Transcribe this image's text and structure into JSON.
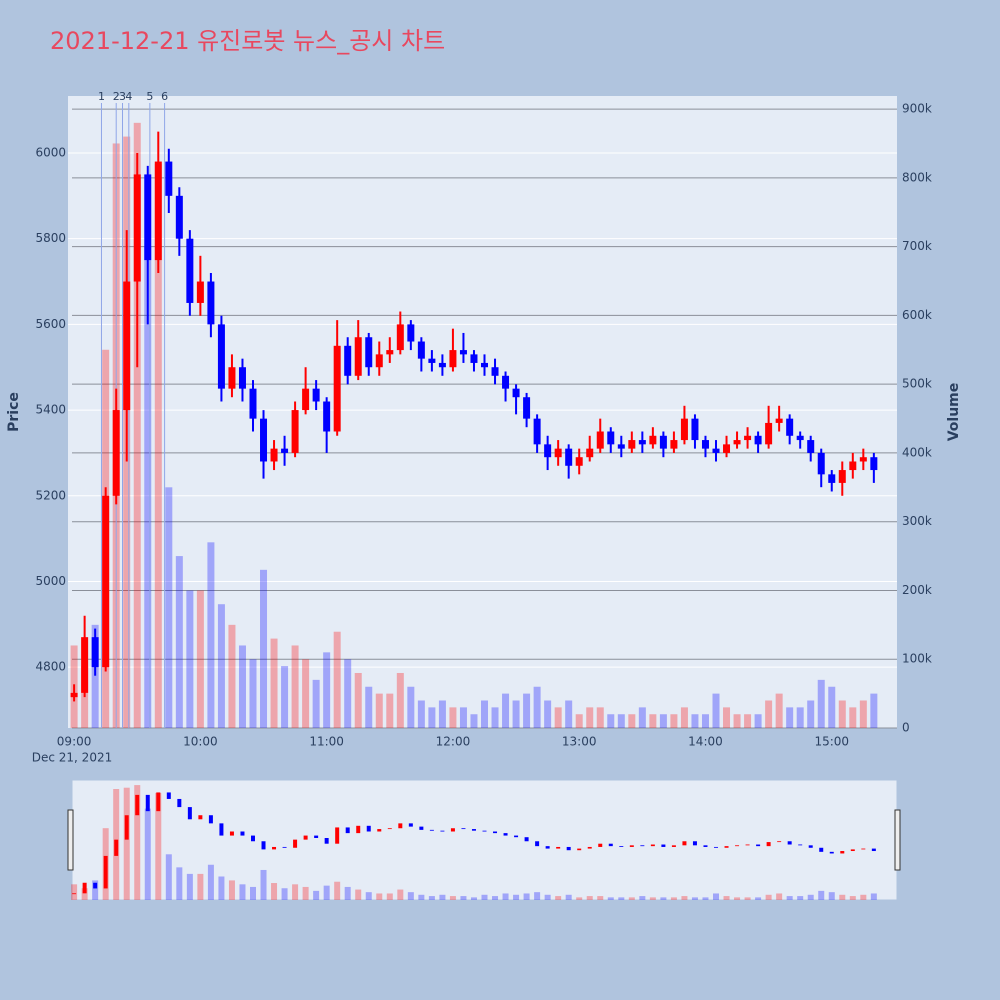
{
  "chart_data": {
    "type": "candlestick",
    "title": "2021-12-21 유진로봇 뉴스_공시 차트",
    "y_label": "Price",
    "y2_label": "Volume",
    "x_date_label": "Dec 21, 2021",
    "up_color": "#ff0000",
    "down_color": "#0000ff",
    "x": [
      "09:00",
      "09:05",
      "09:10",
      "09:15",
      "09:20",
      "09:25",
      "09:30",
      "09:35",
      "09:40",
      "09:45",
      "09:50",
      "09:55",
      "10:00",
      "10:05",
      "10:10",
      "10:15",
      "10:20",
      "10:25",
      "10:30",
      "10:35",
      "10:40",
      "10:45",
      "10:50",
      "10:55",
      "11:00",
      "11:05",
      "11:10",
      "11:15",
      "11:20",
      "11:25",
      "11:30",
      "11:35",
      "11:40",
      "11:45",
      "11:50",
      "11:55",
      "12:00",
      "12:05",
      "12:10",
      "12:15",
      "12:20",
      "12:25",
      "12:30",
      "12:35",
      "12:40",
      "12:45",
      "12:50",
      "12:55",
      "13:00",
      "13:05",
      "13:10",
      "13:15",
      "13:20",
      "13:25",
      "13:30",
      "13:35",
      "13:40",
      "13:45",
      "13:50",
      "13:55",
      "14:00",
      "14:05",
      "14:10",
      "14:15",
      "14:20",
      "14:25",
      "14:30",
      "14:35",
      "14:40",
      "14:45",
      "14:50",
      "14:55",
      "15:00",
      "15:05",
      "15:10",
      "15:15",
      "15:20"
    ],
    "open": [
      4730,
      4740,
      4870,
      4800,
      5200,
      5400,
      5700,
      5950,
      5750,
      5980,
      5900,
      5800,
      5650,
      5700,
      5600,
      5450,
      5500,
      5450,
      5380,
      5280,
      5310,
      5300,
      5400,
      5450,
      5420,
      5350,
      5550,
      5480,
      5570,
      5500,
      5530,
      5540,
      5600,
      5560,
      5520,
      5510,
      5500,
      5540,
      5530,
      5510,
      5500,
      5480,
      5450,
      5430,
      5380,
      5320,
      5290,
      5310,
      5270,
      5290,
      5310,
      5350,
      5320,
      5310,
      5330,
      5320,
      5340,
      5310,
      5330,
      5380,
      5330,
      5310,
      5300,
      5320,
      5330,
      5340,
      5320,
      5370,
      5380,
      5340,
      5330,
      5300,
      5250,
      5230,
      5260,
      5280,
      5290
    ],
    "high": [
      4760,
      4920,
      4890,
      5220,
      5450,
      5820,
      6000,
      5970,
      6050,
      6010,
      5920,
      5820,
      5760,
      5720,
      5620,
      5530,
      5520,
      5470,
      5400,
      5330,
      5340,
      5420,
      5500,
      5470,
      5430,
      5610,
      5570,
      5610,
      5580,
      5560,
      5570,
      5630,
      5610,
      5570,
      5540,
      5530,
      5590,
      5580,
      5540,
      5530,
      5520,
      5490,
      5460,
      5440,
      5390,
      5340,
      5330,
      5320,
      5310,
      5340,
      5380,
      5360,
      5340,
      5350,
      5350,
      5360,
      5350,
      5350,
      5410,
      5390,
      5340,
      5330,
      5340,
      5350,
      5360,
      5350,
      5410,
      5410,
      5390,
      5350,
      5340,
      5310,
      5260,
      5280,
      5300,
      5310,
      5300
    ],
    "low": [
      4720,
      4730,
      4780,
      4790,
      5180,
      5280,
      5500,
      5600,
      5720,
      5860,
      5760,
      5620,
      5620,
      5570,
      5420,
      5430,
      5420,
      5350,
      5240,
      5260,
      5270,
      5290,
      5390,
      5400,
      5300,
      5340,
      5460,
      5470,
      5480,
      5480,
      5510,
      5530,
      5540,
      5490,
      5490,
      5480,
      5490,
      5510,
      5490,
      5480,
      5460,
      5420,
      5390,
      5360,
      5300,
      5260,
      5270,
      5240,
      5250,
      5280,
      5300,
      5300,
      5290,
      5300,
      5300,
      5310,
      5290,
      5300,
      5320,
      5310,
      5290,
      5280,
      5290,
      5310,
      5310,
      5300,
      5310,
      5350,
      5320,
      5310,
      5280,
      5220,
      5210,
      5200,
      5240,
      5260,
      5230
    ],
    "close": [
      4740,
      4870,
      4800,
      5200,
      5400,
      5700,
      5950,
      5750,
      5980,
      5900,
      5800,
      5650,
      5700,
      5600,
      5450,
      5500,
      5450,
      5380,
      5280,
      5310,
      5300,
      5400,
      5450,
      5420,
      5350,
      5550,
      5480,
      5570,
      5500,
      5530,
      5540,
      5600,
      5560,
      5520,
      5510,
      5500,
      5540,
      5530,
      5510,
      5500,
      5480,
      5450,
      5430,
      5380,
      5320,
      5290,
      5310,
      5270,
      5290,
      5310,
      5350,
      5320,
      5310,
      5330,
      5320,
      5340,
      5310,
      5330,
      5380,
      5330,
      5310,
      5300,
      5320,
      5330,
      5340,
      5320,
      5370,
      5380,
      5340,
      5330,
      5300,
      5250,
      5230,
      5260,
      5280,
      5290,
      5260
    ],
    "volume": [
      120000,
      90000,
      150000,
      550000,
      850000,
      860000,
      880000,
      700000,
      820000,
      350000,
      250000,
      200000,
      200000,
      270000,
      180000,
      150000,
      120000,
      100000,
      230000,
      130000,
      90000,
      120000,
      100000,
      70000,
      110000,
      140000,
      100000,
      80000,
      60000,
      50000,
      50000,
      80000,
      60000,
      40000,
      30000,
      40000,
      30000,
      30000,
      20000,
      40000,
      30000,
      50000,
      40000,
      50000,
      60000,
      40000,
      30000,
      40000,
      20000,
      30000,
      30000,
      20000,
      20000,
      20000,
      30000,
      20000,
      20000,
      20000,
      30000,
      20000,
      20000,
      50000,
      30000,
      20000,
      20000,
      20000,
      40000,
      50000,
      30000,
      30000,
      40000,
      70000,
      60000,
      40000,
      30000,
      40000,
      50000
    ],
    "xlim": [
      "08:59",
      "15:31"
    ],
    "xticks": [
      "09:00",
      "10:00",
      "11:00",
      "12:00",
      "13:00",
      "14:00",
      "15:00"
    ],
    "ylim": [
      4658,
      6133
    ],
    "yticks": [
      4800,
      5000,
      5200,
      5400,
      5600,
      5800,
      6000
    ],
    "y2lim": [
      0,
      919000
    ],
    "y2ticks": [
      {
        "value": 0,
        "label": "0"
      },
      {
        "value": 100000,
        "label": "100k"
      },
      {
        "value": 200000,
        "label": "200k"
      },
      {
        "value": 300000,
        "label": "300k"
      },
      {
        "value": 400000,
        "label": "400k"
      },
      {
        "value": 500000,
        "label": "500k"
      },
      {
        "value": 600000,
        "label": "600k"
      },
      {
        "value": 700000,
        "label": "700k"
      },
      {
        "value": 800000,
        "label": "800k"
      },
      {
        "value": 900000,
        "label": "900k"
      }
    ],
    "news": [
      {
        "label": "1",
        "time": "09:13"
      },
      {
        "label": "2",
        "time": "09:20"
      },
      {
        "label": "3",
        "time": "09:23"
      },
      {
        "label": "4",
        "time": "09:26"
      },
      {
        "label": "5",
        "time": "09:36"
      },
      {
        "label": "6",
        "time": "09:43"
      }
    ],
    "range_slider": true
  }
}
